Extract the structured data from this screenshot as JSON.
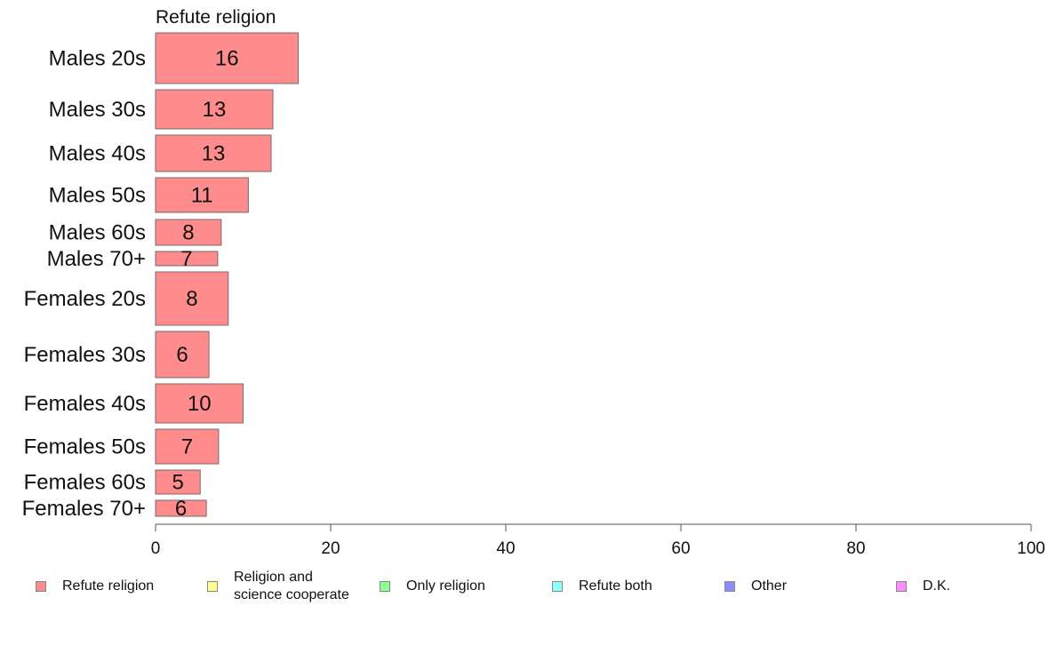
{
  "chart_data": {
    "type": "bar",
    "orientation": "horizontal",
    "title": "Refute religion",
    "categories": [
      "Males 20s",
      "Males 30s",
      "Males 40s",
      "Males 50s",
      "Males 60s",
      "Males 70+",
      "Females 20s",
      "Females 30s",
      "Females 40s",
      "Females 50s",
      "Females 60s",
      "Females 70+"
    ],
    "values": [
      16.3,
      13.4,
      13.2,
      10.6,
      7.5,
      7.1,
      8.3,
      6.1,
      10.0,
      7.2,
      5.1,
      5.8
    ],
    "value_labels": [
      "16",
      "13",
      "13",
      "11",
      "8",
      "7",
      "8",
      "6",
      "10",
      "7",
      "5",
      "6"
    ],
    "xlim": [
      0,
      100
    ],
    "xticks": [
      "0",
      "20",
      "40",
      "60",
      "80",
      "100"
    ],
    "bar_color": "#ff8c8c",
    "legend": [
      {
        "label": "Refute religion",
        "color": "#ff8c8c"
      },
      {
        "label": "Religion and\nscience cooperate",
        "color": "#ffff8c"
      },
      {
        "label": "Only religion",
        "color": "#8cff8c"
      },
      {
        "label": "Refute both",
        "color": "#8cffff"
      },
      {
        "label": "Other",
        "color": "#8c8cff"
      },
      {
        "label": "D.K.",
        "color": "#ff8cff"
      }
    ],
    "legend_position": "bottom",
    "grid": false
  }
}
